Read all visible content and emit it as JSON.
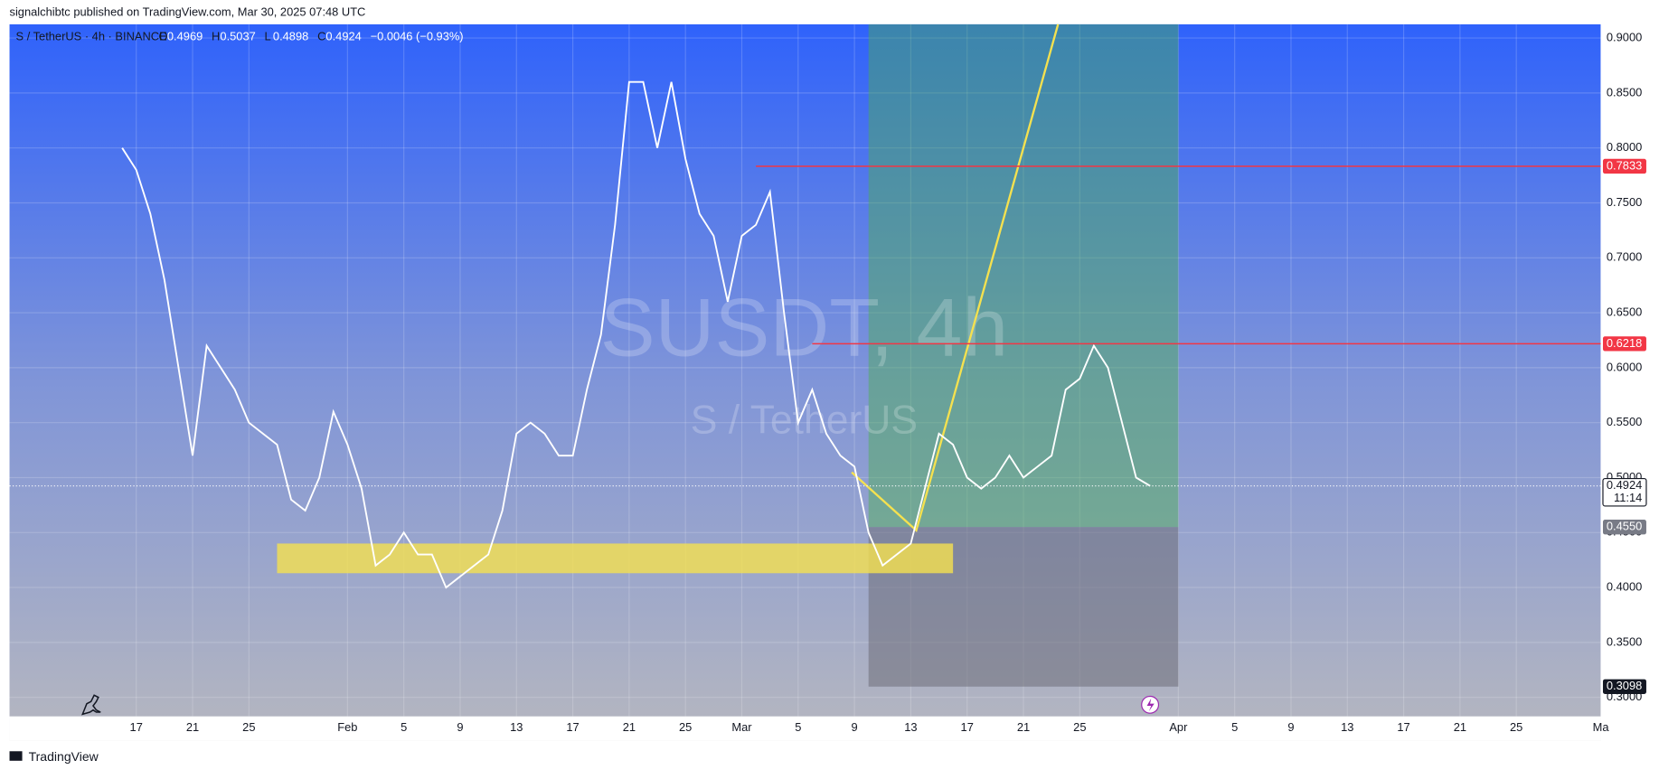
{
  "header": {
    "publisher": "signalchibtc published on TradingView.com, Mar 30, 2025 07:48 UTC"
  },
  "footer": {
    "brand": "TradingView"
  },
  "chart_data": {
    "type": "line",
    "title": "S / TetherUS · 4h · BINANCE",
    "ohlc": [
      {
        "key": "O",
        "value": "0.4969"
      },
      {
        "key": "H",
        "value": "0.5037"
      },
      {
        "key": "L",
        "value": "0.4898"
      },
      {
        "key": "C",
        "value": "0.4924"
      }
    ],
    "change": "−0.0046 (−0.93%)",
    "watermark": "SUSDT, 4h",
    "watermark_subtitle": "S / TetherUS",
    "color": "#ffffff",
    "x": [
      "01-16",
      "01-17",
      "01-18",
      "01-19",
      "01-20",
      "01-21",
      "01-22",
      "01-23",
      "01-24",
      "01-25",
      "01-26",
      "01-27",
      "01-28",
      "01-29",
      "01-30",
      "01-31",
      "02-01",
      "02-02",
      "02-03",
      "02-04",
      "02-05",
      "02-06",
      "02-07",
      "02-08",
      "02-09",
      "02-10",
      "02-11",
      "02-12",
      "02-13",
      "02-14",
      "02-15",
      "02-16",
      "02-17",
      "02-18",
      "02-19",
      "02-20",
      "02-21",
      "02-22",
      "02-23",
      "02-24",
      "02-25",
      "02-26",
      "02-27",
      "02-28",
      "03-01",
      "03-02",
      "03-03",
      "03-04",
      "03-05",
      "03-06",
      "03-07",
      "03-08",
      "03-09",
      "03-10",
      "03-11",
      "03-12",
      "03-13",
      "03-14",
      "03-15",
      "03-16",
      "03-17",
      "03-18",
      "03-19",
      "03-20",
      "03-21",
      "03-22",
      "03-23",
      "03-24",
      "03-25",
      "03-26",
      "03-27",
      "03-28",
      "03-29",
      "03-30"
    ],
    "values": [
      0.8,
      0.78,
      0.74,
      0.68,
      0.6,
      0.52,
      0.62,
      0.6,
      0.58,
      0.55,
      0.54,
      0.53,
      0.48,
      0.47,
      0.5,
      0.56,
      0.53,
      0.49,
      0.42,
      0.43,
      0.45,
      0.43,
      0.43,
      0.4,
      0.41,
      0.42,
      0.43,
      0.47,
      0.54,
      0.55,
      0.54,
      0.52,
      0.52,
      0.58,
      0.63,
      0.73,
      0.86,
      0.86,
      0.8,
      0.86,
      0.79,
      0.74,
      0.72,
      0.66,
      0.72,
      0.73,
      0.76,
      0.65,
      0.55,
      0.58,
      0.54,
      0.52,
      0.51,
      0.45,
      0.42,
      0.43,
      0.44,
      0.49,
      0.54,
      0.53,
      0.5,
      0.49,
      0.5,
      0.52,
      0.5,
      0.51,
      0.52,
      0.58,
      0.59,
      0.62,
      0.6,
      0.55,
      0.5,
      0.4924
    ],
    "xlim": [
      "01-08",
      "05-01"
    ],
    "xticks": [
      {
        "value": "01-17",
        "label": "17"
      },
      {
        "value": "01-21",
        "label": "21"
      },
      {
        "value": "01-25",
        "label": "25"
      },
      {
        "value": "02-01",
        "label": "Feb"
      },
      {
        "value": "02-05",
        "label": "5"
      },
      {
        "value": "02-09",
        "label": "9"
      },
      {
        "value": "02-13",
        "label": "13"
      },
      {
        "value": "02-17",
        "label": "17"
      },
      {
        "value": "02-21",
        "label": "21"
      },
      {
        "value": "02-25",
        "label": "25"
      },
      {
        "value": "03-01",
        "label": "Mar"
      },
      {
        "value": "03-05",
        "label": "5"
      },
      {
        "value": "03-09",
        "label": "9"
      },
      {
        "value": "03-13",
        "label": "13"
      },
      {
        "value": "03-17",
        "label": "17"
      },
      {
        "value": "03-21",
        "label": "21"
      },
      {
        "value": "03-25",
        "label": "25"
      },
      {
        "value": "04-01",
        "label": "Apr"
      },
      {
        "value": "04-05",
        "label": "5"
      },
      {
        "value": "04-09",
        "label": "9"
      },
      {
        "value": "04-13",
        "label": "13"
      },
      {
        "value": "04-17",
        "label": "17"
      },
      {
        "value": "04-21",
        "label": "21"
      },
      {
        "value": "04-25",
        "label": "25"
      },
      {
        "value": "05-01",
        "label": "Ma"
      }
    ],
    "ylim": [
      0.2606,
      0.9125
    ],
    "yticks": [
      {
        "value": 0.3,
        "label": "0.3000"
      },
      {
        "value": 0.35,
        "label": "0.3500"
      },
      {
        "value": 0.4,
        "label": "0.4000"
      },
      {
        "value": 0.45,
        "label": "0.4500"
      },
      {
        "value": 0.5,
        "label": "0.5000"
      },
      {
        "value": 0.55,
        "label": "0.5500"
      },
      {
        "value": 0.6,
        "label": "0.6000"
      },
      {
        "value": 0.65,
        "label": "0.6500"
      },
      {
        "value": 0.7,
        "label": "0.7000"
      },
      {
        "value": 0.75,
        "label": "0.7500"
      },
      {
        "value": 0.8,
        "label": "0.8000"
      },
      {
        "value": 0.85,
        "label": "0.8500"
      },
      {
        "value": 0.9,
        "label": "0.9000"
      }
    ],
    "grid": true,
    "levels": [
      {
        "value": 0.7833,
        "from": "03-02",
        "color": "#f23645"
      },
      {
        "value": 0.6218,
        "from": "03-06",
        "color": "#f23645"
      }
    ],
    "zone": {
      "low": 0.413,
      "high": 0.44,
      "from": "01-27",
      "to": "03-16",
      "color": "#f5e14f"
    },
    "position": {
      "entry": {
        "value": 0.455,
        "label": "0.4550"
      },
      "stop": 0.3098,
      "from": "03-10",
      "to": "04-01"
    },
    "last_price": {
      "value": 0.4924,
      "countdown": "11:14"
    }
  }
}
